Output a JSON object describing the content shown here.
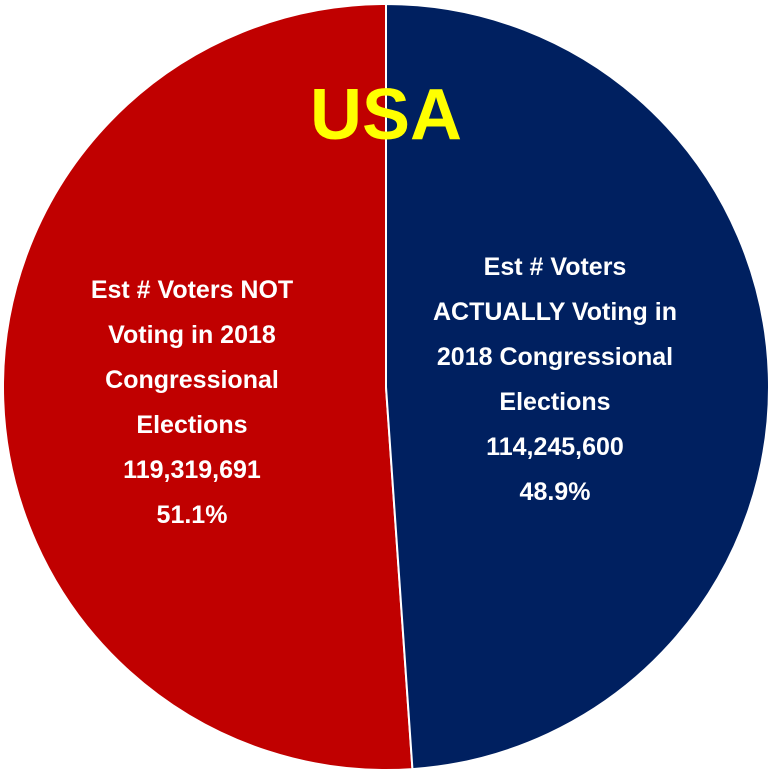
{
  "chart_data": {
    "type": "pie",
    "title": "USA",
    "categories": [
      "Est # Voters NOT Voting in 2018 Congressional Elections",
      "Est # Voters ACTUALLY Voting in 2018 Congressional Elections"
    ],
    "values": [
      51.1,
      48.9
    ],
    "value_labels": [
      "51.1%",
      "48.9%"
    ],
    "counts": [
      119319691,
      114245600
    ],
    "count_labels": [
      "119,319,691",
      "114,245,600"
    ],
    "colors": [
      "#c00000",
      "#002060"
    ]
  }
}
